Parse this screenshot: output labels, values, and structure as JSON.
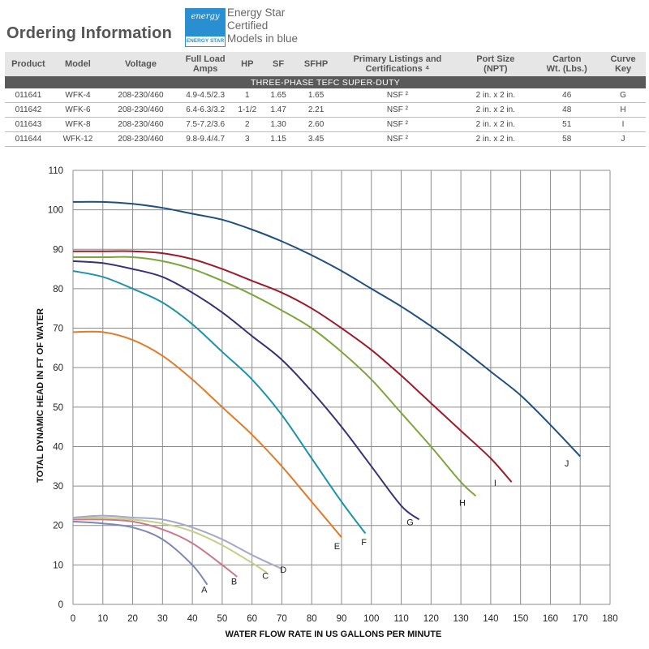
{
  "header": {
    "title": "Ordering Information",
    "energy_star_logo": {
      "top": "energy",
      "bottom": "ENERGY STAR"
    },
    "energy_star_note": [
      "Energy Star",
      "Certified",
      "Models in blue"
    ]
  },
  "table": {
    "columns": [
      "Product",
      "Model",
      "Voltage",
      "Full Load\nAmps",
      "HP",
      "SF",
      "SFHP",
      "Primary Listings and\nCertifications ⁴",
      "Port Size\n(NPT)",
      "Carton\nWt. (Lbs.)",
      "Curve\nKey"
    ],
    "band": "THREE-PHASE TEFC SUPER-DUTY",
    "rows": [
      [
        "011641",
        "WFK-4",
        "208-230/460",
        "4.9-4.5/2.3",
        "1",
        "1.65",
        "1.65",
        "NSF ²",
        "2 in. x 2 in.",
        "46",
        "G"
      ],
      [
        "011642",
        "WFK-6",
        "208-230/460",
        "6.4-6.3/3.2",
        "1-1/2",
        "1.47",
        "2.21",
        "NSF ²",
        "2 in. x 2 in.",
        "48",
        "H"
      ],
      [
        "011643",
        "WFK-8",
        "208-230/460",
        "7.5-7.2/3.6",
        "2",
        "1.30",
        "2.60",
        "NSF ²",
        "2 in. x 2 in.",
        "51",
        "I"
      ],
      [
        "011644",
        "WFK-12",
        "208-230/460",
        "9.8-9.4/4.7",
        "3",
        "1.15",
        "3.45",
        "NSF ²",
        "2 in. x 2 in.",
        "58",
        "J"
      ]
    ]
  },
  "chart_data": {
    "type": "line",
    "title": "",
    "xlabel": "WATER FLOW RATE IN US GALLONS PER MINUTE",
    "ylabel": "TOTAL DYNAMIC HEAD IN FT OF WATER",
    "xlim": [
      0,
      180
    ],
    "ylim": [
      0,
      110
    ],
    "xticks": [
      0,
      10,
      20,
      30,
      40,
      50,
      60,
      70,
      80,
      90,
      100,
      110,
      120,
      130,
      140,
      150,
      160,
      170,
      180
    ],
    "yticks": [
      0,
      10,
      20,
      30,
      40,
      50,
      60,
      70,
      80,
      90,
      100,
      110
    ],
    "grid": true,
    "series": [
      {
        "name": "A",
        "color": "#7d86b4",
        "points": [
          [
            0,
            21
          ],
          [
            10,
            20.5
          ],
          [
            20,
            19.5
          ],
          [
            30,
            16.5
          ],
          [
            40,
            10
          ],
          [
            45,
            5
          ]
        ]
      },
      {
        "name": "B",
        "color": "#c77a8e",
        "points": [
          [
            0,
            21.5
          ],
          [
            10,
            21.5
          ],
          [
            20,
            21
          ],
          [
            30,
            19
          ],
          [
            40,
            15.5
          ],
          [
            50,
            10
          ],
          [
            55,
            7
          ]
        ]
      },
      {
        "name": "C",
        "color": "#c5cf86",
        "points": [
          [
            0,
            22
          ],
          [
            10,
            22
          ],
          [
            20,
            21.5
          ],
          [
            30,
            20.5
          ],
          [
            40,
            18.5
          ],
          [
            50,
            15
          ],
          [
            60,
            10.5
          ],
          [
            65,
            8
          ]
        ]
      },
      {
        "name": "D",
        "color": "#a7a7c7",
        "points": [
          [
            0,
            22
          ],
          [
            10,
            22.5
          ],
          [
            20,
            22
          ],
          [
            30,
            21.5
          ],
          [
            40,
            19.5
          ],
          [
            50,
            16.5
          ],
          [
            60,
            12.5
          ],
          [
            70,
            9
          ]
        ]
      },
      {
        "name": "E",
        "color": "#e07b2a",
        "points": [
          [
            0,
            69
          ],
          [
            10,
            69
          ],
          [
            20,
            67
          ],
          [
            30,
            63
          ],
          [
            40,
            57
          ],
          [
            50,
            50
          ],
          [
            60,
            43
          ],
          [
            70,
            35
          ],
          [
            80,
            26
          ],
          [
            90,
            17
          ]
        ]
      },
      {
        "name": "F",
        "color": "#1e93a8",
        "points": [
          [
            0,
            84.5
          ],
          [
            10,
            83
          ],
          [
            20,
            80
          ],
          [
            30,
            76.5
          ],
          [
            40,
            71
          ],
          [
            50,
            64
          ],
          [
            60,
            57
          ],
          [
            70,
            48
          ],
          [
            80,
            37
          ],
          [
            90,
            26
          ],
          [
            98,
            18
          ]
        ]
      },
      {
        "name": "G",
        "color": "#3b2f75",
        "points": [
          [
            0,
            87
          ],
          [
            10,
            86.5
          ],
          [
            20,
            85
          ],
          [
            30,
            83
          ],
          [
            40,
            79
          ],
          [
            50,
            74
          ],
          [
            60,
            68
          ],
          [
            70,
            62
          ],
          [
            80,
            54
          ],
          [
            90,
            45
          ],
          [
            100,
            35
          ],
          [
            110,
            25
          ],
          [
            116,
            21.5
          ]
        ]
      },
      {
        "name": "H",
        "color": "#7ca63b",
        "points": [
          [
            0,
            88
          ],
          [
            10,
            88
          ],
          [
            20,
            88
          ],
          [
            30,
            87
          ],
          [
            40,
            85
          ],
          [
            50,
            82
          ],
          [
            60,
            78.5
          ],
          [
            70,
            74.5
          ],
          [
            80,
            70
          ],
          [
            90,
            64
          ],
          [
            100,
            57
          ],
          [
            110,
            48.5
          ],
          [
            120,
            40
          ],
          [
            130,
            31
          ],
          [
            135,
            27.5
          ]
        ]
      },
      {
        "name": "I",
        "color": "#9b1b2a",
        "points": [
          [
            0,
            89.5
          ],
          [
            10,
            89.5
          ],
          [
            20,
            89.5
          ],
          [
            30,
            89
          ],
          [
            40,
            87.5
          ],
          [
            50,
            85
          ],
          [
            60,
            82
          ],
          [
            70,
            79
          ],
          [
            80,
            75
          ],
          [
            90,
            70
          ],
          [
            100,
            64.5
          ],
          [
            110,
            58
          ],
          [
            120,
            51
          ],
          [
            130,
            44
          ],
          [
            140,
            37
          ],
          [
            147,
            31
          ]
        ]
      },
      {
        "name": "J",
        "color": "#1f4f7f",
        "points": [
          [
            0,
            102
          ],
          [
            10,
            102
          ],
          [
            20,
            101.5
          ],
          [
            30,
            100.5
          ],
          [
            40,
            99
          ],
          [
            50,
            97.5
          ],
          [
            60,
            95
          ],
          [
            70,
            92
          ],
          [
            80,
            88.5
          ],
          [
            90,
            84.5
          ],
          [
            100,
            80
          ],
          [
            110,
            75.5
          ],
          [
            120,
            70.5
          ],
          [
            130,
            65
          ],
          [
            140,
            59
          ],
          [
            150,
            53
          ],
          [
            160,
            45.5
          ],
          [
            170,
            37.5
          ]
        ]
      }
    ],
    "curve_labels": [
      {
        "text": "A",
        "x": 44,
        "y": 3
      },
      {
        "text": "B",
        "x": 54,
        "y": 5
      },
      {
        "text": "C",
        "x": 64.5,
        "y": 6.5
      },
      {
        "text": "D",
        "x": 70.5,
        "y": 8
      },
      {
        "text": "E",
        "x": 88.5,
        "y": 14
      },
      {
        "text": "F",
        "x": 97.5,
        "y": 15
      },
      {
        "text": "G",
        "x": 113,
        "y": 20
      },
      {
        "text": "H",
        "x": 130.5,
        "y": 25
      },
      {
        "text": "I",
        "x": 141.5,
        "y": 30
      },
      {
        "text": "J",
        "x": 165.5,
        "y": 35
      }
    ]
  }
}
